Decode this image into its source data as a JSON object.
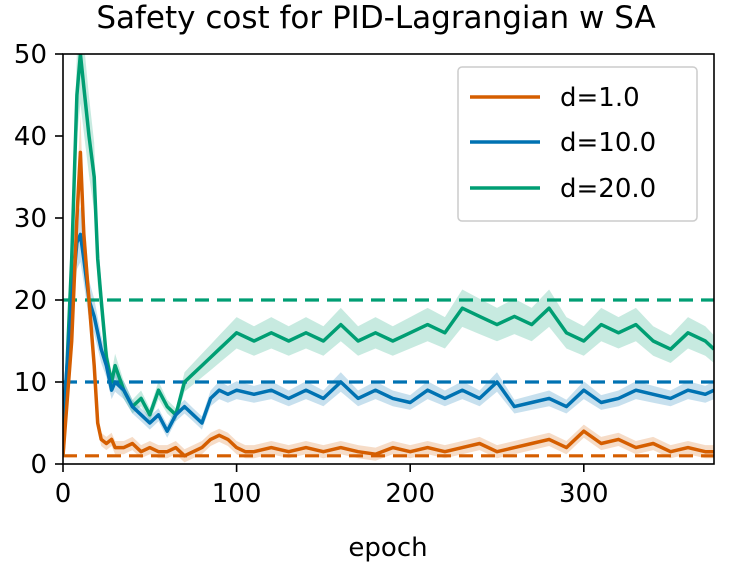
{
  "chart_data": {
    "type": "line",
    "title": "Safety cost for PID-Lagrangian w SA",
    "xlabel": "epoch",
    "ylabel": "",
    "xlim": [
      0,
      375
    ],
    "ylim": [
      0,
      50
    ],
    "xticks": [
      0,
      100,
      200,
      300
    ],
    "yticks": [
      0,
      10,
      20,
      30,
      40,
      50
    ],
    "grid": false,
    "legend_position": "top-right",
    "series": [
      {
        "name": "d=1.0",
        "color": "#d55e00",
        "threshold": 1.0,
        "x": [
          0,
          5,
          8,
          10,
          12,
          15,
          18,
          20,
          22,
          25,
          28,
          30,
          35,
          40,
          45,
          50,
          55,
          60,
          65,
          70,
          75,
          80,
          85,
          90,
          95,
          100,
          105,
          110,
          120,
          130,
          140,
          150,
          160,
          170,
          180,
          190,
          200,
          210,
          220,
          230,
          240,
          250,
          260,
          270,
          280,
          290,
          300,
          310,
          320,
          330,
          340,
          350,
          360,
          370,
          375
        ],
        "y": [
          1,
          15,
          30,
          38,
          28,
          20,
          12,
          5,
          3,
          2.5,
          3,
          2,
          2,
          2.5,
          1.5,
          2,
          1.5,
          1.5,
          2,
          1,
          1.5,
          2,
          3,
          3.5,
          3,
          2,
          1.5,
          1.5,
          2,
          1.5,
          2,
          1.5,
          2,
          1.5,
          1.2,
          2,
          1.5,
          2,
          1.5,
          2,
          2.5,
          1.5,
          2,
          2.5,
          3,
          2,
          4,
          2.5,
          3,
          2,
          2.5,
          1.5,
          2,
          1.5,
          1.5
        ]
      },
      {
        "name": "d=10.0",
        "color": "#0072b2",
        "threshold": 10.0,
        "x": [
          0,
          5,
          8,
          10,
          12,
          15,
          18,
          20,
          22,
          25,
          28,
          30,
          35,
          40,
          45,
          50,
          55,
          60,
          65,
          70,
          75,
          80,
          85,
          90,
          95,
          100,
          110,
          120,
          130,
          140,
          150,
          160,
          170,
          180,
          190,
          200,
          210,
          220,
          230,
          240,
          250,
          260,
          270,
          280,
          290,
          300,
          310,
          320,
          330,
          340,
          350,
          360,
          370,
          375
        ],
        "y": [
          5,
          20,
          27,
          28,
          25,
          20,
          18,
          16,
          14,
          12,
          9,
          10,
          9,
          7,
          6,
          5,
          6,
          4,
          6,
          7,
          6,
          5,
          8,
          9,
          8.5,
          9,
          8.5,
          9,
          8,
          9,
          8,
          10,
          8,
          9,
          8,
          7.5,
          9,
          8,
          9,
          8,
          10,
          7,
          7.5,
          8,
          7,
          9,
          7.5,
          8,
          9,
          8.5,
          8,
          9,
          8.5,
          9
        ]
      },
      {
        "name": "d=20.0",
        "color": "#009e73",
        "threshold": 20.0,
        "x": [
          0,
          5,
          8,
          10,
          12,
          15,
          18,
          20,
          22,
          25,
          28,
          30,
          35,
          40,
          45,
          50,
          55,
          60,
          65,
          70,
          75,
          80,
          85,
          90,
          95,
          100,
          110,
          120,
          130,
          140,
          150,
          160,
          170,
          180,
          190,
          200,
          210,
          220,
          230,
          240,
          250,
          260,
          270,
          280,
          290,
          300,
          310,
          320,
          330,
          340,
          350,
          360,
          370,
          375
        ],
        "y": [
          1,
          25,
          45,
          50,
          46,
          40,
          35,
          25,
          20,
          13,
          10,
          12,
          9,
          7,
          8,
          6,
          9,
          7,
          6,
          10,
          11,
          12,
          13,
          14,
          15,
          16,
          15,
          16,
          15,
          16,
          15,
          17,
          15,
          16,
          15,
          16,
          17,
          16,
          19,
          18,
          17,
          18,
          17,
          19,
          16,
          15,
          17,
          16,
          17,
          15,
          14,
          16,
          15,
          14
        ]
      }
    ]
  }
}
